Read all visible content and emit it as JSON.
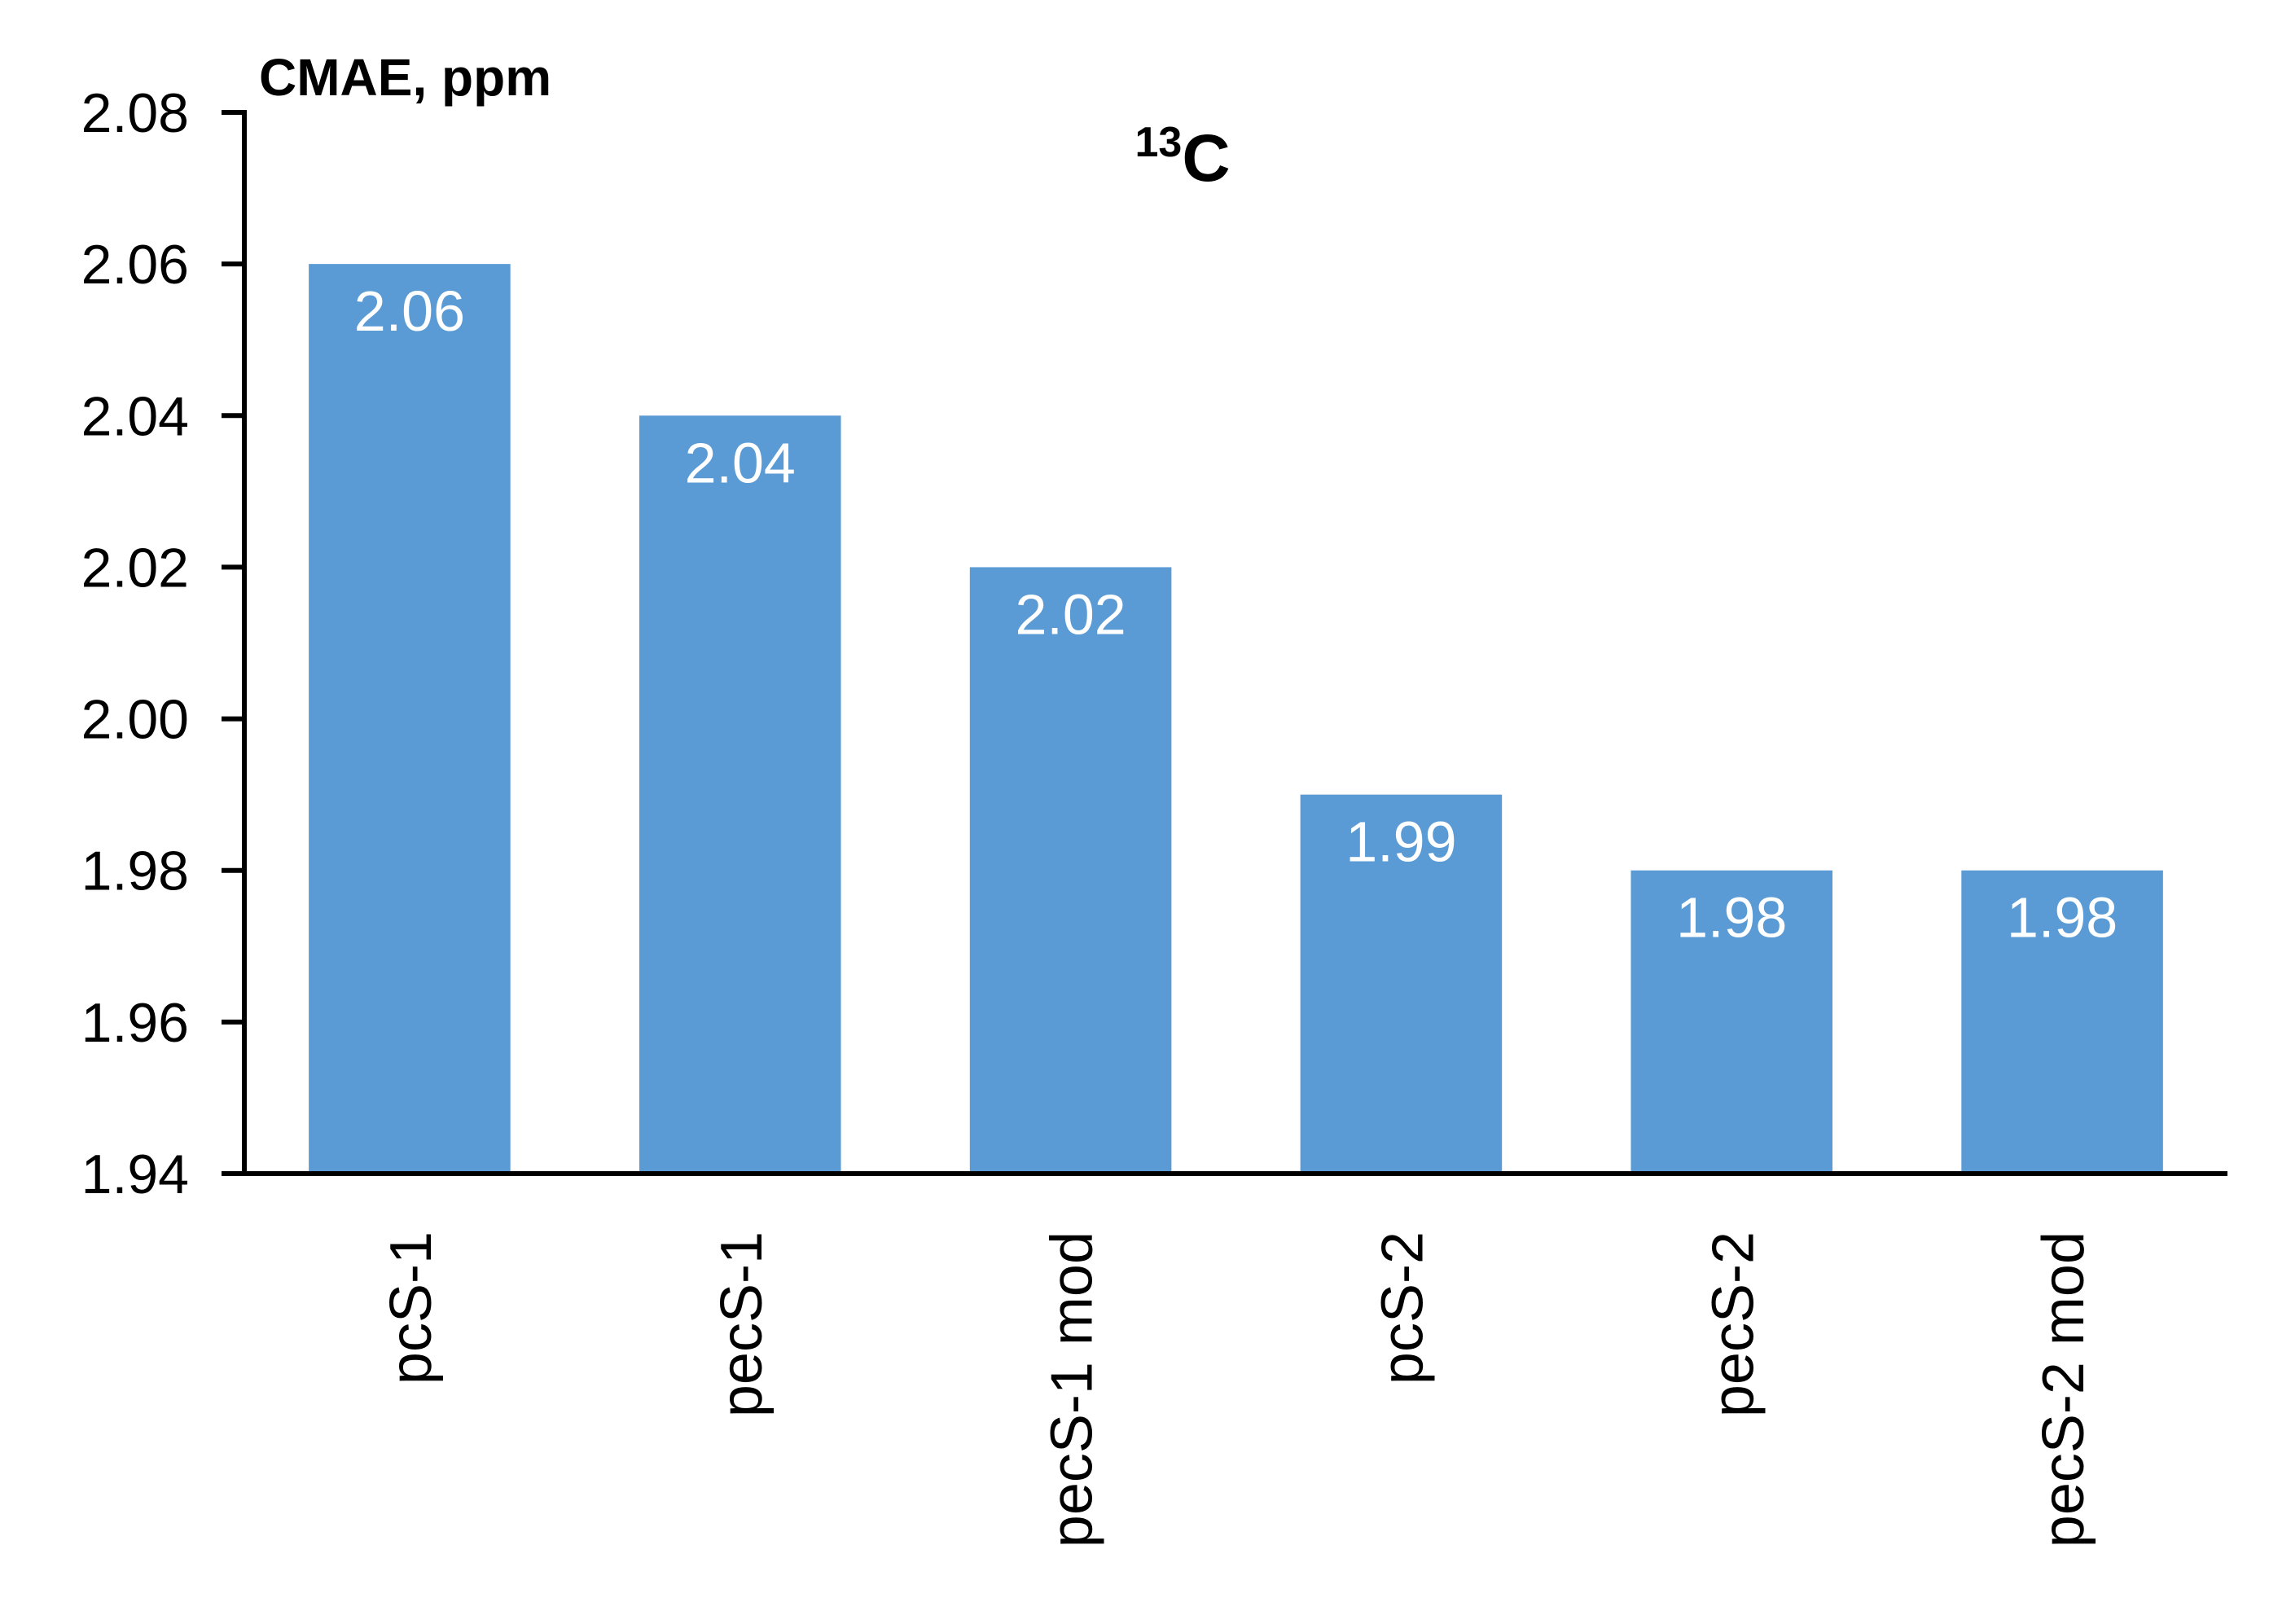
{
  "chart_data": {
    "type": "bar",
    "title": {
      "superscript": "13",
      "main": "C"
    },
    "ylabel": "CMAE, ppm",
    "xlabel": "",
    "categories": [
      "pcS-1",
      "pecS-1",
      "pecS-1 mod",
      "pcS-2",
      "pecS-2",
      "pecS-2 mod"
    ],
    "values": [
      2.06,
      2.04,
      2.02,
      1.99,
      1.98,
      1.98
    ],
    "data_labels": [
      "2.06",
      "2.04",
      "2.02",
      "1.99",
      "1.98",
      "1.98"
    ],
    "ylim": [
      1.94,
      2.08
    ],
    "yticks": [
      1.94,
      1.96,
      1.98,
      2.0,
      2.02,
      2.04,
      2.06,
      2.08
    ],
    "ytick_labels": [
      "1.94",
      "1.96",
      "1.98",
      "2.00",
      "2.02",
      "2.04",
      "2.06",
      "2.08"
    ],
    "grid": false,
    "legend": "none",
    "colors": {
      "bar": "#5b9bd5",
      "axis": "#000000",
      "data_label": "#ffffff"
    }
  }
}
